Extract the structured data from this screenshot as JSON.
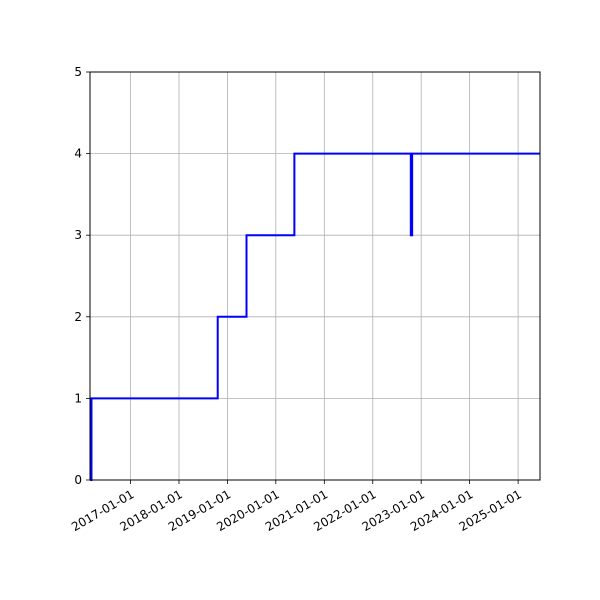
{
  "chart_data": {
    "type": "line",
    "title": "",
    "xlabel": "",
    "ylabel": "",
    "x_axis": "date",
    "xlim": [
      "2016-03-01",
      "2025-06-15"
    ],
    "ylim": [
      0,
      5
    ],
    "grid": true,
    "legend": "none",
    "line_color": "#0000ff",
    "x_ticks": [
      "2017-01-01",
      "2018-01-01",
      "2019-01-01",
      "2020-01-01",
      "2021-01-01",
      "2022-01-01",
      "2023-01-01",
      "2024-01-01",
      "2025-01-01"
    ],
    "y_ticks": [
      "0",
      "1",
      "2",
      "3",
      "4",
      "5"
    ],
    "series": [
      {
        "x": [
          "2016-03-05",
          "2016-03-05",
          "2016-03-10",
          "2016-03-10",
          "2016-03-12",
          "2016-03-12",
          "2018-10-20",
          "2018-10-20",
          "2019-05-25",
          "2019-05-25",
          "2019-06-01",
          "2019-06-01",
          "2020-05-20",
          "2020-05-20",
          "2022-10-15",
          "2022-10-15",
          "2022-10-25",
          "2022-10-25",
          "2025-06-15"
        ],
        "y": [
          0,
          1,
          1,
          0,
          0,
          1,
          1,
          2,
          2,
          3,
          3,
          3,
          3,
          4,
          4,
          3,
          3,
          4,
          4
        ]
      }
    ]
  }
}
